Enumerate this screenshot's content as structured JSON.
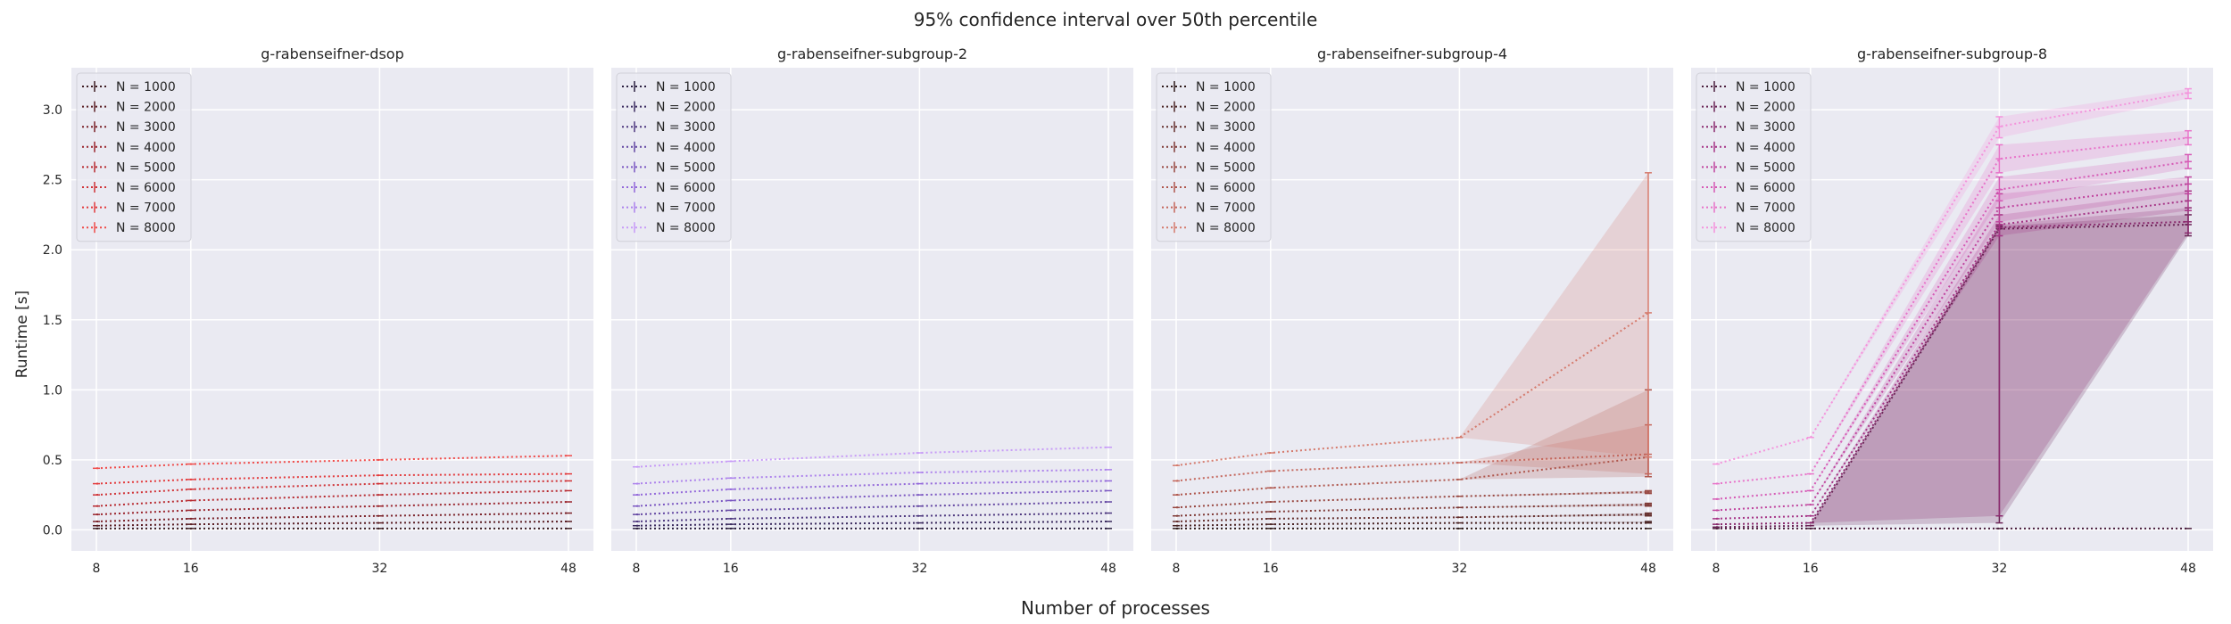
{
  "figure": {
    "title": "95% confidence interval over 50th percentile",
    "xlabel": "Number of processes",
    "ylabel": "Runtime [s]"
  },
  "chart_data": [
    {
      "type": "line",
      "title": "g-rabenseifner-dsop",
      "x": [
        8,
        16,
        32,
        48
      ],
      "xticks": [
        "8",
        "16",
        "32",
        "48"
      ],
      "ylim": [
        -0.15,
        3.3
      ],
      "yticks": [
        "0.0",
        "0.5",
        "1.0",
        "1.5",
        "2.0",
        "2.5",
        "3.0"
      ],
      "grid": true,
      "legend": "top-left",
      "series": [
        {
          "name": "N = 1000",
          "color": "#3d1c22",
          "values": [
            0.01,
            0.01,
            0.01,
            0.01
          ]
        },
        {
          "name": "N = 2000",
          "color": "#5a1e24",
          "values": [
            0.03,
            0.04,
            0.05,
            0.06
          ]
        },
        {
          "name": "N = 3000",
          "color": "#7a2128",
          "values": [
            0.06,
            0.08,
            0.1,
            0.12
          ]
        },
        {
          "name": "N = 4000",
          "color": "#9a242c",
          "values": [
            0.11,
            0.14,
            0.17,
            0.2
          ]
        },
        {
          "name": "N = 5000",
          "color": "#b82a30",
          "values": [
            0.17,
            0.21,
            0.25,
            0.28
          ]
        },
        {
          "name": "N = 6000",
          "color": "#d03236",
          "values": [
            0.25,
            0.29,
            0.33,
            0.35
          ]
        },
        {
          "name": "N = 7000",
          "color": "#e33a3c",
          "values": [
            0.33,
            0.36,
            0.39,
            0.4
          ]
        },
        {
          "name": "N = 8000",
          "color": "#f04a48",
          "values": [
            0.44,
            0.47,
            0.5,
            0.53
          ]
        }
      ]
    },
    {
      "type": "line",
      "title": "g-rabenseifner-subgroup-2",
      "x": [
        8,
        16,
        32,
        48
      ],
      "xticks": [
        "8",
        "16",
        "32",
        "48"
      ],
      "ylim": [
        -0.15,
        3.3
      ],
      "grid": true,
      "legend": "top-left",
      "series": [
        {
          "name": "N = 1000",
          "color": "#2b1f3f",
          "values": [
            0.01,
            0.01,
            0.01,
            0.01
          ]
        },
        {
          "name": "N = 2000",
          "color": "#3b2b5f",
          "values": [
            0.03,
            0.04,
            0.05,
            0.06
          ]
        },
        {
          "name": "N = 3000",
          "color": "#4e387f",
          "values": [
            0.06,
            0.08,
            0.1,
            0.12
          ]
        },
        {
          "name": "N = 4000",
          "color": "#6346a2",
          "values": [
            0.11,
            0.14,
            0.17,
            0.2
          ]
        },
        {
          "name": "N = 5000",
          "color": "#7b57c2",
          "values": [
            0.17,
            0.21,
            0.25,
            0.28
          ]
        },
        {
          "name": "N = 6000",
          "color": "#9368da",
          "values": [
            0.25,
            0.29,
            0.33,
            0.35
          ]
        },
        {
          "name": "N = 7000",
          "color": "#ad82ec",
          "values": [
            0.33,
            0.37,
            0.41,
            0.43
          ]
        },
        {
          "name": "N = 8000",
          "color": "#c79bf7",
          "values": [
            0.45,
            0.49,
            0.55,
            0.59
          ]
        }
      ]
    },
    {
      "type": "line",
      "title": "g-rabenseifner-subgroup-4",
      "x": [
        8,
        16,
        32,
        48
      ],
      "xticks": [
        "8",
        "16",
        "32",
        "48"
      ],
      "ylim": [
        -0.15,
        3.3
      ],
      "grid": true,
      "legend": "top-left",
      "series": [
        {
          "name": "N = 1000",
          "color": "#2e1a1a",
          "values": [
            0.01,
            0.01,
            0.01,
            0.01
          ],
          "ci": [
            [
              0.01,
              0.01
            ],
            [
              0.01,
              0.01
            ],
            [
              0.01,
              0.01
            ],
            [
              0.01,
              0.01
            ]
          ]
        },
        {
          "name": "N = 2000",
          "color": "#4a2424",
          "values": [
            0.03,
            0.04,
            0.05,
            0.05
          ],
          "ci": [
            [
              0.03,
              0.03
            ],
            [
              0.04,
              0.04
            ],
            [
              0.05,
              0.05
            ],
            [
              0.05,
              0.06
            ]
          ]
        },
        {
          "name": "N = 3000",
          "color": "#652f2d",
          "values": [
            0.06,
            0.08,
            0.09,
            0.11
          ],
          "ci": [
            [
              0.06,
              0.06
            ],
            [
              0.08,
              0.08
            ],
            [
              0.09,
              0.09
            ],
            [
              0.1,
              0.12
            ]
          ]
        },
        {
          "name": "N = 4000",
          "color": "#7f3a36",
          "values": [
            0.1,
            0.13,
            0.16,
            0.18
          ],
          "ci": [
            [
              0.1,
              0.1
            ],
            [
              0.13,
              0.13
            ],
            [
              0.16,
              0.16
            ],
            [
              0.17,
              0.19
            ]
          ]
        },
        {
          "name": "N = 5000",
          "color": "#984740",
          "values": [
            0.16,
            0.2,
            0.24,
            0.27
          ],
          "ci": [
            [
              0.16,
              0.16
            ],
            [
              0.2,
              0.2
            ],
            [
              0.24,
              0.24
            ],
            [
              0.26,
              0.28
            ]
          ]
        },
        {
          "name": "N = 6000",
          "color": "#af564c",
          "values": [
            0.25,
            0.3,
            0.36,
            0.52
          ],
          "ci": [
            [
              0.25,
              0.25
            ],
            [
              0.3,
              0.3
            ],
            [
              0.36,
              0.36
            ],
            [
              0.38,
              1.0
            ]
          ]
        },
        {
          "name": "N = 7000",
          "color": "#c4665b",
          "values": [
            0.35,
            0.42,
            0.48,
            0.54
          ],
          "ci": [
            [
              0.35,
              0.35
            ],
            [
              0.42,
              0.42
            ],
            [
              0.48,
              0.48
            ],
            [
              0.4,
              0.75
            ]
          ]
        },
        {
          "name": "N = 8000",
          "color": "#d57a6c",
          "values": [
            0.46,
            0.55,
            0.66,
            1.55
          ],
          "ci": [
            [
              0.46,
              0.46
            ],
            [
              0.55,
              0.55
            ],
            [
              0.66,
              0.66
            ],
            [
              0.52,
              2.55
            ]
          ]
        }
      ]
    },
    {
      "type": "line",
      "title": "g-rabenseifner-subgroup-8",
      "x": [
        8,
        16,
        32,
        48
      ],
      "xticks": [
        "8",
        "16",
        "32",
        "48"
      ],
      "ylim": [
        -0.15,
        3.3
      ],
      "grid": true,
      "legend": "top-left",
      "series": [
        {
          "name": "N = 1000",
          "color": "#4a1e3c",
          "values": [
            0.01,
            0.01,
            0.01,
            0.01
          ],
          "ci": [
            [
              0.01,
              0.01
            ],
            [
              0.01,
              0.01
            ],
            [
              0.01,
              0.01
            ],
            [
              0.01,
              0.01
            ]
          ]
        },
        {
          "name": "N = 2000",
          "color": "#6b2456",
          "values": [
            0.02,
            0.03,
            2.15,
            2.18
          ],
          "ci": [
            [
              0.02,
              0.02
            ],
            [
              0.03,
              0.03
            ],
            [
              0.05,
              2.17
            ],
            [
              2.1,
              2.25
            ]
          ]
        },
        {
          "name": "N = 3000",
          "color": "#8a2a6e",
          "values": [
            0.04,
            0.05,
            2.16,
            2.2
          ],
          "ci": [
            [
              0.04,
              0.04
            ],
            [
              0.05,
              0.05
            ],
            [
              0.1,
              2.18
            ],
            [
              2.12,
              2.3
            ]
          ]
        },
        {
          "name": "N = 4000",
          "color": "#a63486",
          "values": [
            0.08,
            0.1,
            2.18,
            2.35
          ],
          "ci": [
            [
              0.08,
              0.08
            ],
            [
              0.1,
              0.1
            ],
            [
              2.1,
              2.25
            ],
            [
              2.28,
              2.42
            ]
          ]
        },
        {
          "name": "N = 5000",
          "color": "#c0449e",
          "values": [
            0.14,
            0.18,
            2.3,
            2.47
          ],
          "ci": [
            [
              0.14,
              0.14
            ],
            [
              0.18,
              0.18
            ],
            [
              2.2,
              2.4
            ],
            [
              2.4,
              2.52
            ]
          ]
        },
        {
          "name": "N = 6000",
          "color": "#d659b5",
          "values": [
            0.22,
            0.28,
            2.43,
            2.63
          ],
          "ci": [
            [
              0.22,
              0.22
            ],
            [
              0.28,
              0.28
            ],
            [
              2.35,
              2.52
            ],
            [
              2.58,
              2.68
            ]
          ]
        },
        {
          "name": "N = 7000",
          "color": "#e873c9",
          "values": [
            0.33,
            0.4,
            2.65,
            2.8
          ],
          "ci": [
            [
              0.33,
              0.33
            ],
            [
              0.4,
              0.4
            ],
            [
              2.55,
              2.75
            ],
            [
              2.75,
              2.85
            ]
          ]
        },
        {
          "name": "N = 8000",
          "color": "#f493dc",
          "values": [
            0.47,
            0.66,
            2.88,
            3.12
          ],
          "ci": [
            [
              0.47,
              0.47
            ],
            [
              0.66,
              0.66
            ],
            [
              2.8,
              2.95
            ],
            [
              3.08,
              3.15
            ]
          ]
        }
      ]
    }
  ]
}
